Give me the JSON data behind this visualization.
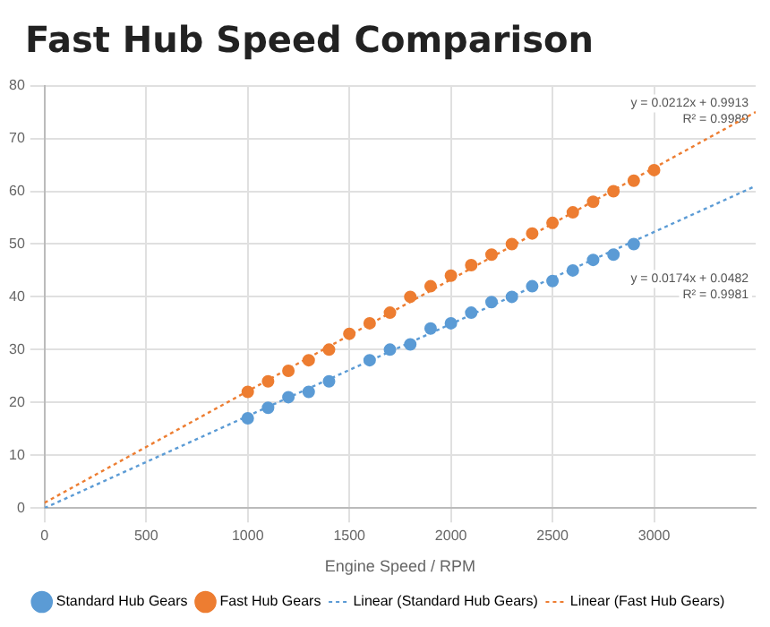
{
  "chart_data": {
    "type": "scatter",
    "title": "Fast Hub Speed Comparison",
    "xlabel": "Engine Speed / RPM",
    "xlim": [
      0,
      3500
    ],
    "xticks": [
      0,
      500,
      1000,
      1500,
      2000,
      2500,
      3000
    ],
    "ylim": [
      0,
      80
    ],
    "yticks": [
      0,
      10,
      20,
      30,
      40,
      50,
      60,
      70,
      80
    ],
    "grid": true,
    "legend": "bottom",
    "series": [
      {
        "name": "Standard Hub Gears",
        "type": "scatter",
        "marker": "circle",
        "color": "#5b9bd5",
        "x": [
          1000,
          1100,
          1200,
          1300,
          1400,
          1600,
          1700,
          1800,
          1900,
          2000,
          2100,
          2200,
          2300,
          2400,
          2500,
          2600,
          2700,
          2800,
          2900
        ],
        "values": [
          17,
          19,
          21,
          22,
          24,
          28,
          30,
          31,
          34,
          35,
          37,
          39,
          40,
          42,
          43,
          45,
          47,
          48,
          50
        ]
      },
      {
        "name": "Fast Hub Gears",
        "type": "scatter",
        "marker": "circle",
        "color": "#ed7d31",
        "x": [
          1000,
          1100,
          1200,
          1300,
          1400,
          1500,
          1600,
          1700,
          1800,
          1900,
          2000,
          2100,
          2200,
          2300,
          2400,
          2500,
          2600,
          2700,
          2800,
          2900,
          3000
        ],
        "values": [
          22,
          24,
          26,
          28,
          30,
          33,
          35,
          37,
          40,
          42,
          44,
          46,
          48,
          50,
          52,
          54,
          56,
          58,
          60,
          62,
          64
        ]
      },
      {
        "name": "Linear (Standard Hub Gears)",
        "type": "line",
        "marker": "none",
        "line_style": "dotted",
        "color": "#5b9bd5",
        "x": [
          0,
          3500
        ],
        "values": [
          0,
          61
        ]
      },
      {
        "name": "Linear (Fast Hub Gears)",
        "type": "line",
        "marker": "none",
        "line_style": "dotted",
        "color": "#ed7d31",
        "x": [
          0,
          3500
        ],
        "values": [
          1,
          75
        ]
      }
    ],
    "annotations": [
      "y = 0.0212x + 0.9913",
      "R² = 0.9989",
      "y = 0.0174x + 0.0482",
      "R² = 0.9981"
    ]
  }
}
